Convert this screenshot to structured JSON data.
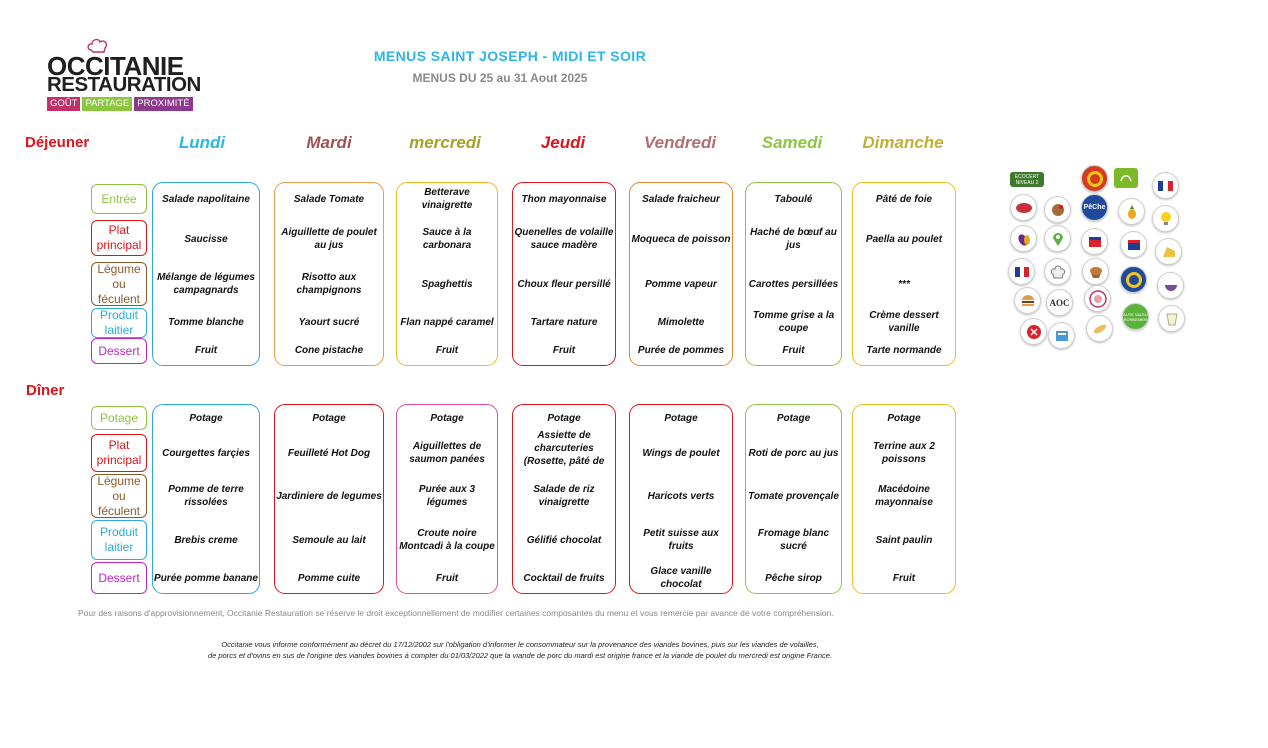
{
  "logo": {
    "line1": "OCCITANIE",
    "line2": "RESTAURATION",
    "tags": [
      "GOÛT",
      "PARTAGE",
      "PROXIMITÉ"
    ]
  },
  "header": {
    "title": "MENUS SAINT JOSEPH - MIDI ET SOIR",
    "subtitle": "MENUS DU 25 au 31 Aout 2025"
  },
  "colors": {
    "accent_red": "#e3131b",
    "title_blue": "#2bb6e8",
    "day_colors": [
      "#2bb6e8",
      "#a05252",
      "#a8a02a",
      "#e3131b",
      "#b07070",
      "#8cc63f",
      "#c2b033"
    ],
    "lunch_borders": [
      "#29abe2",
      "#f29a4a",
      "#f5b820",
      "#e3131b",
      "#e8842c",
      "#8cc63f",
      "#f5b820"
    ],
    "dinner_borders": [
      "#29abe2",
      "#e3131b",
      "#e84aa8",
      "#e3131b",
      "#e3131b",
      "#8cc63f",
      "#f5b820"
    ]
  },
  "days": [
    "Lundi",
    "Mardi",
    "mercredi",
    "Jeudi",
    "Vendredi",
    "Samedi",
    "Dimanche"
  ],
  "lunch": {
    "label": "Déjeuner",
    "categories": [
      {
        "label": "Entrée",
        "color": "#8cc63f"
      },
      {
        "label": "Plat principal",
        "color": "#e3131b"
      },
      {
        "label": "Légume ou féculent",
        "color": "#8b5a2b"
      },
      {
        "label": "Produit laitier",
        "color": "#29abe2"
      },
      {
        "label": "Dessert",
        "color": "#c026c7"
      }
    ],
    "menu": [
      [
        "Salade napolitaine",
        "Saucisse",
        "Mélange de légumes campagnards",
        "Tomme blanche",
        "Fruit"
      ],
      [
        "Salade Tomate",
        "Aiguillette de poulet au jus",
        "Risotto aux champignons",
        "Yaourt sucré",
        "Cone pistache"
      ],
      [
        "Betterave vinaigrette",
        "Sauce à la carbonara",
        "Spaghettis",
        "Flan nappé caramel",
        "Fruit"
      ],
      [
        "Thon mayonnaise",
        "Quenelles de volaille sauce madère",
        "Choux fleur persillé",
        "Tartare nature",
        "Fruit"
      ],
      [
        "Salade fraicheur",
        "Moqueca de poisson",
        "Pomme vapeur",
        "Mimolette",
        "Purée de pommes"
      ],
      [
        "Taboulé",
        "Haché de bœuf au jus",
        "Carottes persillées",
        "Tomme grise a la coupe",
        "Fruit"
      ],
      [
        "Pâté de foie",
        "Paella au poulet",
        "***",
        "Crème dessert vanille",
        "Tarte normande"
      ]
    ]
  },
  "dinner": {
    "label": "Dîner",
    "categories": [
      {
        "label": "Potage",
        "color": "#8cc63f"
      },
      {
        "label": "Plat principal",
        "color": "#e3131b"
      },
      {
        "label": "Légume ou féculent",
        "color": "#8b5a2b"
      },
      {
        "label": "Produit laitier",
        "color": "#29abe2"
      },
      {
        "label": "Dessert",
        "color": "#c026c7"
      }
    ],
    "menu": [
      [
        "Potage",
        "Courgettes farçies",
        "Pomme de terre rissolées",
        "Brebis creme",
        "Purée pomme banane"
      ],
      [
        "Potage",
        "Feuilleté Hot Dog",
        "Jardiniere de legumes",
        "Semoule au lait",
        "Pomme cuite"
      ],
      [
        "Potage",
        "Aiguillettes de saumon panées",
        "Purée aux 3 légumes",
        "Croute noire Montcadi à la coupe",
        "Fruit"
      ],
      [
        "Potage",
        "Assiette de charcuteries (Rosette, pâté de campagne",
        "Salade de riz vinaigrette",
        "Gélifié chocolat",
        "Cocktail de fruits"
      ],
      [
        "Potage",
        "Wings de poulet",
        "Haricots verts",
        "Petit suisse aux fruits",
        "Glace vanille chocolat"
      ],
      [
        "Potage",
        "Roti de porc au jus",
        "Tomate provençale",
        "Fromage blanc sucré",
        "Pêche sirop"
      ],
      [
        "Potage",
        "Terrine aux 2 poissons",
        "Macédoine mayonnaise",
        "Saint paulin",
        "Fruit"
      ]
    ]
  },
  "notes": {
    "supply": "Pour des raisons d'approvisionnement, Occitanie Restauration se réserve le droit exceptionnellement de modifier certaines composantes du menu et vous remercie par avance de votre compréhension.",
    "origin_line1": "Occitanie vous informe conformément au décret du 17/12/2002 sur l'obligation d'informer le consommateur sur la provenance des viandes bovines, puis sur les viandes de volailles,",
    "origin_line2": "de porcs et d'ovins en sus de l'origine des viandes bovines à compter du 01/03/2022 que la viande de porc du mardi est origine france et la viande de poulet du mercredi est origine France."
  },
  "labels_legend": {
    "ecocert": "ECOCERT NIVEAU 2",
    "peche": "PêChe",
    "aoc": "AOC",
    "hve": "HAUTE VALEUR ENVIRONNEMENTALE"
  }
}
